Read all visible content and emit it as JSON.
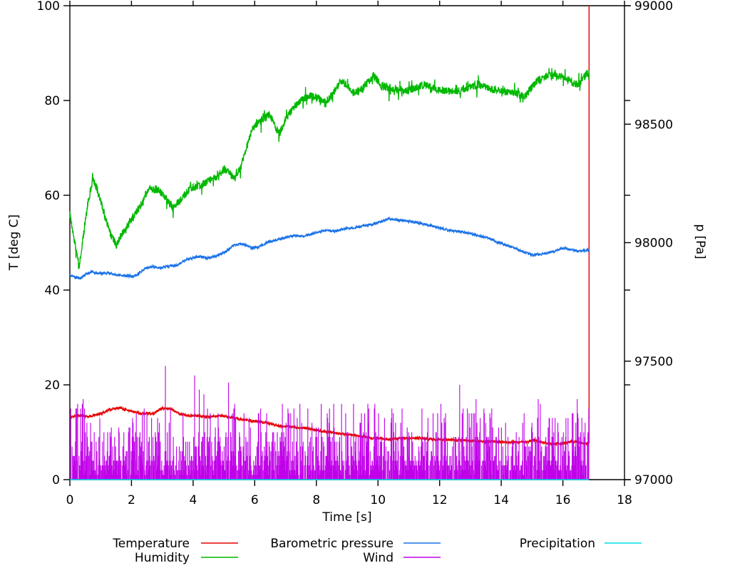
{
  "chart_data": {
    "type": "line",
    "title": "",
    "xlabel": "Time [s]",
    "ylabel_left": "T [deg C]",
    "ylabel_right": "p [Pa]",
    "x_range": [
      0,
      18
    ],
    "y_left_range": [
      0,
      100
    ],
    "y_right_range": [
      97000,
      99000
    ],
    "x_ticks": [
      0,
      2,
      4,
      6,
      8,
      10,
      12,
      14,
      16,
      18
    ],
    "y_left_ticks": [
      0,
      20,
      40,
      60,
      80,
      100
    ],
    "y_right_ticks": [
      97000,
      97500,
      98000,
      98500,
      99000
    ],
    "grid": false,
    "legend_position": "below-plot, 2 rows x 3 columns",
    "data_end_time": 16.85,
    "series": [
      {
        "name": "Temperature",
        "color": "#e60000",
        "axis": "left",
        "style": "line",
        "noise": 0.25,
        "end_spike": {
          "t": 16.85,
          "from": 7.6,
          "to": 100
        },
        "points": [
          [
            0,
            13.2
          ],
          [
            0.3,
            13.6
          ],
          [
            0.6,
            13.3
          ],
          [
            1.0,
            13.9
          ],
          [
            1.3,
            14.8
          ],
          [
            1.6,
            15.2
          ],
          [
            1.9,
            14.6
          ],
          [
            2.3,
            14.0
          ],
          [
            2.7,
            13.9
          ],
          [
            3.0,
            15.1
          ],
          [
            3.3,
            14.9
          ],
          [
            3.6,
            13.7
          ],
          [
            4.0,
            13.5
          ],
          [
            4.5,
            13.2
          ],
          [
            4.9,
            13.5
          ],
          [
            5.3,
            13.0
          ],
          [
            5.8,
            12.5
          ],
          [
            6.3,
            12.1
          ],
          [
            6.8,
            11.3
          ],
          [
            7.3,
            11.1
          ],
          [
            7.8,
            10.7
          ],
          [
            8.3,
            10.1
          ],
          [
            8.8,
            9.7
          ],
          [
            9.3,
            9.3
          ],
          [
            9.8,
            8.8
          ],
          [
            10.3,
            8.5
          ],
          [
            10.8,
            8.7
          ],
          [
            11.3,
            8.8
          ],
          [
            11.8,
            8.5
          ],
          [
            12.3,
            8.4
          ],
          [
            12.8,
            8.3
          ],
          [
            13.3,
            8.1
          ],
          [
            13.8,
            8.0
          ],
          [
            14.3,
            7.9
          ],
          [
            14.8,
            8.0
          ],
          [
            15.1,
            8.3
          ],
          [
            15.5,
            7.6
          ],
          [
            15.9,
            7.5
          ],
          [
            16.3,
            8.1
          ],
          [
            16.6,
            7.7
          ],
          [
            16.85,
            7.6
          ]
        ]
      },
      {
        "name": "Humidity",
        "color": "#00b800",
        "axis": "left",
        "style": "line",
        "noise": 0.8,
        "extra_noise": 2.0,
        "points": [
          [
            0,
            56
          ],
          [
            0.15,
            50.5
          ],
          [
            0.3,
            45
          ],
          [
            0.45,
            52
          ],
          [
            0.6,
            59
          ],
          [
            0.75,
            63.5
          ],
          [
            0.9,
            61
          ],
          [
            1.1,
            56.5
          ],
          [
            1.3,
            52
          ],
          [
            1.5,
            49.5
          ],
          [
            1.7,
            52
          ],
          [
            2.0,
            55
          ],
          [
            2.3,
            58
          ],
          [
            2.6,
            61.5
          ],
          [
            2.9,
            61
          ],
          [
            3.1,
            59.5
          ],
          [
            3.35,
            57.5
          ],
          [
            3.6,
            59
          ],
          [
            3.9,
            61.5
          ],
          [
            4.2,
            62
          ],
          [
            4.5,
            63
          ],
          [
            4.8,
            64
          ],
          [
            5.0,
            65.5
          ],
          [
            5.2,
            64.5
          ],
          [
            5.35,
            63.5
          ],
          [
            5.55,
            66
          ],
          [
            5.75,
            70.5
          ],
          [
            5.95,
            74.5
          ],
          [
            6.15,
            75.5
          ],
          [
            6.35,
            76.5
          ],
          [
            6.5,
            77
          ],
          [
            6.65,
            74.5
          ],
          [
            6.8,
            73
          ],
          [
            7.0,
            76
          ],
          [
            7.25,
            78.5
          ],
          [
            7.5,
            80
          ],
          [
            7.8,
            81
          ],
          [
            8.05,
            80.5
          ],
          [
            8.25,
            79.5
          ],
          [
            8.5,
            81
          ],
          [
            8.8,
            84.3
          ],
          [
            9.0,
            83
          ],
          [
            9.2,
            81.5
          ],
          [
            9.5,
            82.5
          ],
          [
            9.85,
            85.3
          ],
          [
            10.1,
            83.2
          ],
          [
            10.4,
            82.5
          ],
          [
            10.7,
            82
          ],
          [
            11.0,
            82.2
          ],
          [
            11.5,
            83.3
          ],
          [
            12.0,
            82.1
          ],
          [
            12.5,
            81.9
          ],
          [
            13.0,
            82.8
          ],
          [
            13.3,
            83.2
          ],
          [
            13.7,
            82.4
          ],
          [
            14.2,
            81.8
          ],
          [
            14.5,
            81.4
          ],
          [
            14.75,
            80.6
          ],
          [
            15.0,
            83
          ],
          [
            15.3,
            85
          ],
          [
            15.6,
            85.3
          ],
          [
            16.0,
            85
          ],
          [
            16.3,
            83.8
          ],
          [
            16.5,
            83.3
          ],
          [
            16.7,
            85
          ],
          [
            16.85,
            86.3
          ]
        ]
      },
      {
        "name": "Barometric pressure",
        "color": "#1a72e8",
        "axis": "right",
        "style": "line",
        "noise": 5,
        "points": [
          [
            0,
            97862
          ],
          [
            0.2,
            97852
          ],
          [
            0.35,
            97850
          ],
          [
            0.5,
            97866
          ],
          [
            0.7,
            97876
          ],
          [
            0.9,
            97870
          ],
          [
            1.2,
            97872
          ],
          [
            1.5,
            97864
          ],
          [
            1.8,
            97860
          ],
          [
            2.05,
            97858
          ],
          [
            2.25,
            97872
          ],
          [
            2.45,
            97892
          ],
          [
            2.65,
            97900
          ],
          [
            2.9,
            97894
          ],
          [
            3.2,
            97900
          ],
          [
            3.5,
            97906
          ],
          [
            3.8,
            97930
          ],
          [
            4.05,
            97938
          ],
          [
            4.25,
            97942
          ],
          [
            4.45,
            97934
          ],
          [
            4.7,
            97942
          ],
          [
            5.0,
            97958
          ],
          [
            5.3,
            97986
          ],
          [
            5.5,
            97996
          ],
          [
            5.7,
            97990
          ],
          [
            5.9,
            97978
          ],
          [
            6.1,
            97982
          ],
          [
            6.4,
            98000
          ],
          [
            6.7,
            98012
          ],
          [
            7.0,
            98022
          ],
          [
            7.3,
            98030
          ],
          [
            7.6,
            98026
          ],
          [
            8.0,
            98044
          ],
          [
            8.3,
            98052
          ],
          [
            8.6,
            98048
          ],
          [
            8.9,
            98060
          ],
          [
            9.2,
            98062
          ],
          [
            9.5,
            98070
          ],
          [
            9.8,
            98078
          ],
          [
            10.1,
            98088
          ],
          [
            10.35,
            98100
          ],
          [
            10.6,
            98097
          ],
          [
            10.9,
            98092
          ],
          [
            11.2,
            98086
          ],
          [
            11.5,
            98078
          ],
          [
            11.8,
            98070
          ],
          [
            12.1,
            98058
          ],
          [
            12.4,
            98050
          ],
          [
            12.7,
            98047
          ],
          [
            13.0,
            98038
          ],
          [
            13.3,
            98028
          ],
          [
            13.6,
            98020
          ],
          [
            13.9,
            98000
          ],
          [
            14.3,
            97984
          ],
          [
            14.7,
            97962
          ],
          [
            15.05,
            97948
          ],
          [
            15.4,
            97953
          ],
          [
            15.7,
            97962
          ],
          [
            16.0,
            97978
          ],
          [
            16.25,
            97971
          ],
          [
            16.5,
            97964
          ],
          [
            16.7,
            97967
          ],
          [
            16.85,
            97970
          ]
        ]
      },
      {
        "name": "Wind",
        "color": "#c000e8",
        "axis": "left",
        "style": "impulses",
        "value_range": [
          0,
          24
        ],
        "typical_range": [
          0,
          14
        ],
        "impulse_model": {
          "dt": 0.015,
          "seed": 1234,
          "zero_prob": 0.13,
          "bands": [
            {
              "p": 0.55,
              "lo": 1,
              "hi": 5
            },
            {
              "p": 0.85,
              "lo": 5,
              "hi": 10
            },
            {
              "p": 0.965,
              "lo": 10,
              "hi": 15
            },
            {
              "p": 1.0,
              "lo": 14,
              "hi": 17
            }
          ]
        },
        "notable_spikes": [
          [
            0.35,
            15
          ],
          [
            3.1,
            24
          ],
          [
            4.05,
            22
          ],
          [
            4.2,
            19
          ],
          [
            4.35,
            18
          ],
          [
            5.15,
            20.5
          ],
          [
            5.35,
            16
          ],
          [
            10.45,
            15
          ],
          [
            12.65,
            20
          ],
          [
            12.9,
            15
          ],
          [
            15.2,
            17
          ],
          [
            16.1,
            13
          ]
        ]
      },
      {
        "name": "Precipitation",
        "color": "#00e0e6",
        "axis": "left",
        "style": "line",
        "noise": 0,
        "points": [
          [
            0,
            0
          ],
          [
            16.85,
            0
          ]
        ]
      }
    ]
  }
}
